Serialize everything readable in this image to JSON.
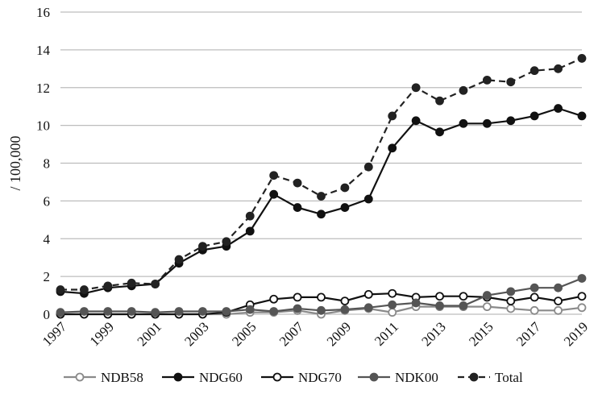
{
  "chart_data": {
    "type": "line",
    "title": "",
    "xlabel": "",
    "ylabel": "/ 100,000",
    "ylim": [
      0,
      16
    ],
    "yticks": [
      "0",
      "2",
      "4",
      "6",
      "8",
      "10",
      "12",
      "14",
      "16"
    ],
    "x": [
      1997,
      1998,
      1999,
      2000,
      2001,
      2002,
      2003,
      2004,
      2005,
      2006,
      2007,
      2008,
      2009,
      2010,
      2011,
      2012,
      2013,
      2014,
      2015,
      2016,
      2017,
      2018,
      2019
    ],
    "xtick_labels": [
      "1997",
      "1999",
      "2001",
      "2003",
      "2005",
      "2007",
      "2009",
      "2011",
      "2013",
      "2015",
      "2017",
      "2019"
    ],
    "grid": true,
    "legend_position": "bottom",
    "series": [
      {
        "name": "NDB58",
        "color": "#8a8a8a",
        "marker": "open-circle",
        "dashed": false,
        "values": [
          0.0,
          0.0,
          0.0,
          0.0,
          0.0,
          0.0,
          0.0,
          0.0,
          0.1,
          0.1,
          0.2,
          0.0,
          0.2,
          0.3,
          0.1,
          0.4,
          0.4,
          0.4,
          0.4,
          0.3,
          0.2,
          0.2,
          0.35
        ]
      },
      {
        "name": "NDG60",
        "color": "#111111",
        "marker": "filled-circle",
        "dashed": false,
        "values": [
          1.2,
          1.1,
          1.4,
          1.5,
          1.6,
          2.7,
          3.4,
          3.6,
          4.4,
          6.35,
          5.65,
          5.3,
          5.65,
          6.1,
          8.8,
          10.25,
          9.65,
          10.1,
          10.1,
          10.25,
          10.5,
          10.9,
          10.5
        ]
      },
      {
        "name": "NDG70",
        "color": "#111111",
        "marker": "open-circle",
        "dashed": false,
        "values": [
          0.0,
          0.0,
          0.0,
          0.0,
          0.0,
          0.0,
          0.0,
          0.1,
          0.5,
          0.8,
          0.9,
          0.9,
          0.7,
          1.05,
          1.1,
          0.9,
          0.95,
          0.95,
          0.9,
          0.7,
          0.9,
          0.7,
          0.95
        ]
      },
      {
        "name": "NDK00",
        "color": "#555555",
        "marker": "filled-circle",
        "dashed": false,
        "values": [
          0.1,
          0.15,
          0.15,
          0.15,
          0.1,
          0.15,
          0.15,
          0.15,
          0.25,
          0.15,
          0.3,
          0.2,
          0.25,
          0.35,
          0.5,
          0.6,
          0.45,
          0.45,
          1.0,
          1.2,
          1.4,
          1.4,
          1.9
        ]
      },
      {
        "name": "Total",
        "color": "#222222",
        "marker": "filled-circle",
        "dashed": true,
        "values": [
          1.3,
          1.3,
          1.5,
          1.65,
          1.6,
          2.9,
          3.6,
          3.85,
          5.2,
          7.35,
          6.95,
          6.25,
          6.7,
          7.8,
          10.5,
          12.0,
          11.3,
          11.85,
          12.4,
          12.3,
          12.9,
          13.0,
          13.55
        ]
      }
    ]
  }
}
